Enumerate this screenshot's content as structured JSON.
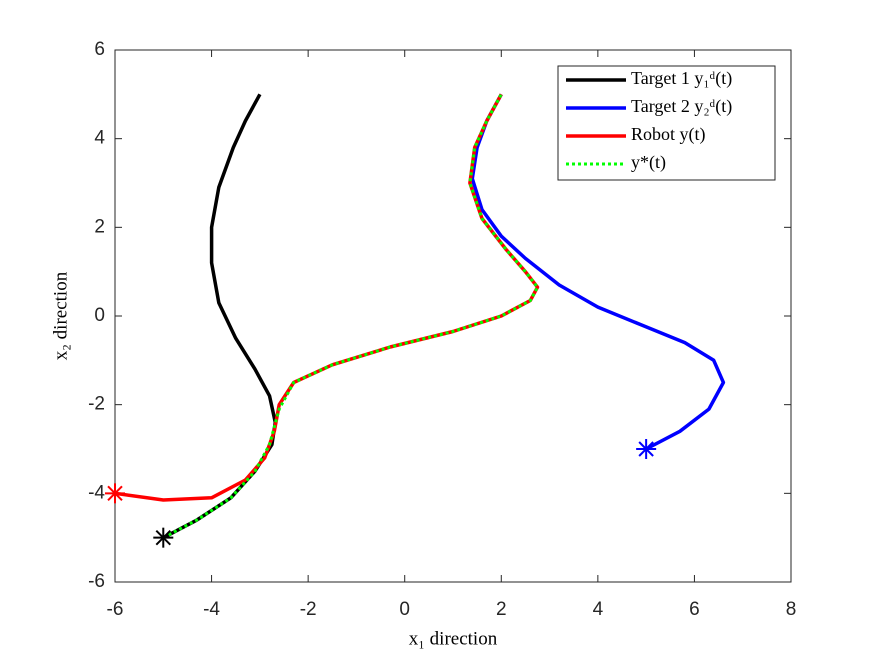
{
  "chart_data": {
    "type": "line",
    "xlabel": "x₁ direction",
    "ylabel": "x₂ direction",
    "xlim": [
      -6,
      8
    ],
    "ylim": [
      -6,
      6
    ],
    "xticks": [
      -6,
      -4,
      -2,
      0,
      2,
      4,
      6,
      8
    ],
    "yticks": [
      -6,
      -4,
      -2,
      0,
      2,
      4,
      6
    ],
    "grid": false,
    "legend": "top-right",
    "series": [
      {
        "name": "Target 1 y₁ᵈ(t)",
        "color": "#000000",
        "style": "solid",
        "start_marker": true,
        "x": [
          -5,
          -4.3,
          -3.6,
          -3.1,
          -2.75,
          -2.68,
          -2.8,
          -3.1,
          -3.5,
          -3.85,
          -4.0,
          -4.0,
          -3.85,
          -3.55,
          -3.3,
          -3.0
        ],
        "values": [
          -5,
          -4.6,
          -4.1,
          -3.5,
          -2.9,
          -2.4,
          -1.8,
          -1.2,
          -0.5,
          0.3,
          1.2,
          2.0,
          2.9,
          3.8,
          4.4,
          5.0
        ]
      },
      {
        "name": "Target 2 y₂ᵈ(t)",
        "color": "#0000ff",
        "style": "solid",
        "start_marker": true,
        "x": [
          5,
          5.7,
          6.3,
          6.6,
          6.4,
          5.8,
          4.9,
          4.0,
          3.2,
          2.5,
          2.0,
          1.6,
          1.4,
          1.5,
          1.7,
          2.0
        ],
        "values": [
          -3,
          -2.6,
          -2.1,
          -1.5,
          -1.0,
          -0.6,
          -0.2,
          0.2,
          0.7,
          1.3,
          1.8,
          2.4,
          3.1,
          3.8,
          4.4,
          5.0
        ]
      },
      {
        "name": "Robot y(t)",
        "color": "#ff0000",
        "style": "solid",
        "start_marker": true,
        "x": [
          -6,
          -5,
          -4,
          -3.3,
          -2.9,
          -2.7,
          -2.6,
          -2.3,
          -1.5,
          -0.3,
          1.0,
          2.0,
          2.6,
          2.75,
          2.5,
          2.1,
          1.6,
          1.35,
          1.45,
          1.7,
          2.0
        ],
        "values": [
          -4,
          -4.15,
          -4.1,
          -3.7,
          -3.2,
          -2.6,
          -2.0,
          -1.5,
          -1.1,
          -0.7,
          -0.35,
          0.0,
          0.35,
          0.65,
          1.0,
          1.5,
          2.2,
          3.0,
          3.8,
          4.4,
          5.0
        ]
      },
      {
        "name": "y*(t)",
        "color": "#00ff00",
        "style": "dotted",
        "start_marker": false,
        "x": [
          -5,
          -4.3,
          -3.6,
          -3.1,
          -2.8,
          -2.6,
          -2.3,
          -1.5,
          -0.3,
          1.0,
          2.0,
          2.6,
          2.75,
          2.5,
          2.1,
          1.6,
          1.35,
          1.45,
          1.7,
          2.0
        ],
        "values": [
          -5,
          -4.6,
          -4.1,
          -3.5,
          -2.9,
          -2.1,
          -1.5,
          -1.1,
          -0.7,
          -0.35,
          0.0,
          0.35,
          0.65,
          1.0,
          1.5,
          2.2,
          3.0,
          3.8,
          4.4,
          5.0
        ]
      }
    ]
  }
}
